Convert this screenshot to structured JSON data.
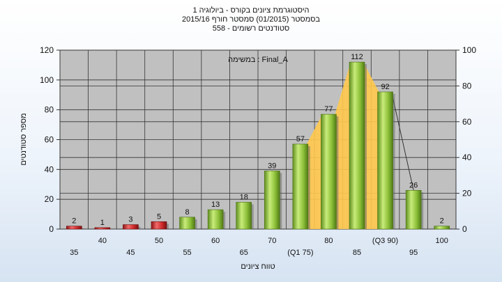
{
  "chart_title": {
    "line1": "היסטוגרמת ציונים בקורס - ביולוגיה 1",
    "line2": "בסמסטר  (01/2015)  סמסטר חורף  2015/16",
    "line3": "סטודנטים רשומים - 558"
  },
  "chart_data": {
    "type": "bar",
    "title": "היסטוגרמת ציונים בקורס - ביולוגיה 1",
    "annotation": "במשימה : Final_A",
    "xlabel": "טווח ציונים",
    "ylabel": "מספר סטודנטים",
    "categories": [
      "35",
      "40",
      "45",
      "50",
      "55",
      "60",
      "65",
      "70",
      "(Q1 75)",
      "80",
      "85",
      "(Q3 90)",
      "95",
      "100"
    ],
    "values": [
      2,
      1,
      3,
      5,
      8,
      13,
      18,
      39,
      57,
      77,
      112,
      92,
      26,
      2
    ],
    "ylim": [
      0,
      120
    ],
    "yticks": [
      0,
      20,
      40,
      60,
      80,
      100,
      120
    ],
    "y2lim": [
      0,
      100
    ],
    "y2ticks": [
      0,
      20,
      40,
      60,
      80,
      100
    ],
    "bar_colors": {
      "low": "#cc2a2a",
      "high": "#8fbf3a"
    },
    "low_threshold_count": 4,
    "quartile_band_color": "#ffc94d",
    "quartile_band_from_index": 8,
    "quartile_band_to_index": 11,
    "grid": true,
    "plot_background": "#c0c0c0"
  }
}
